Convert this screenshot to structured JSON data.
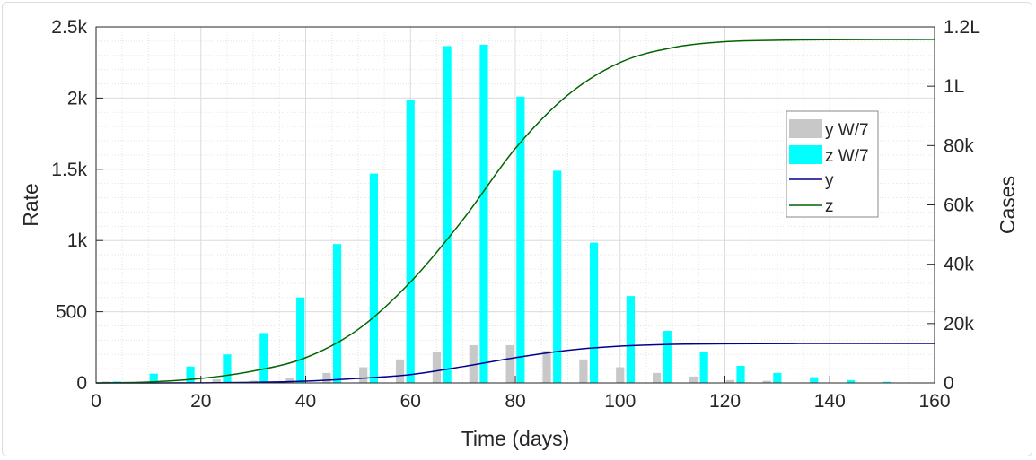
{
  "chart_data": {
    "type": "bar+line",
    "xlabel": "Time (days)",
    "ylabel_left": "Rate",
    "ylabel_right": "Cases",
    "xlim": [
      0,
      160
    ],
    "ylim_left": [
      0,
      2500
    ],
    "ylim_right": [
      0,
      120000
    ],
    "x_ticks": [
      "0",
      "20",
      "40",
      "60",
      "80",
      "100",
      "120",
      "140",
      "160"
    ],
    "y_left_ticks": [
      "0",
      "500",
      "1k",
      "1.5k",
      "2k",
      "2.5k"
    ],
    "y_right_ticks": [
      "0",
      "20k",
      "40k",
      "60k",
      "80k",
      "1L",
      "1.2L"
    ],
    "grid": true,
    "minor_grid": true,
    "legend_placement": "center-right",
    "week_days": [
      3,
      10,
      17,
      24,
      31,
      38,
      45,
      52,
      59,
      66,
      73,
      80,
      87,
      94,
      101,
      108,
      115,
      122,
      129,
      136,
      143,
      150,
      157
    ],
    "bar_series": [
      {
        "name": "y W/7",
        "color": "#c8c8c8",
        "axis": "left",
        "values": [
          10,
          0,
          5,
          25,
          15,
          35,
          70,
          110,
          165,
          220,
          265,
          265,
          225,
          165,
          110,
          70,
          45,
          20,
          15,
          0,
          0,
          0,
          0
        ]
      },
      {
        "name": "z W/7",
        "color": "#00ffff",
        "axis": "left",
        "values": [
          10,
          65,
          115,
          200,
          350,
          600,
          975,
          1470,
          1990,
          2365,
          2375,
          2010,
          1490,
          985,
          610,
          365,
          215,
          120,
          70,
          40,
          20,
          8,
          3
        ]
      }
    ],
    "line_series": [
      {
        "name": "y",
        "color": "#00008b",
        "axis": "right",
        "x": [
          0,
          10,
          20,
          30,
          40,
          50,
          60,
          70,
          80,
          90,
          100,
          110,
          120,
          140,
          160
        ],
        "y": [
          0,
          10,
          50,
          200,
          600,
          1500,
          2800,
          5500,
          8500,
          11000,
          12400,
          13000,
          13200,
          13300,
          13300
        ]
      },
      {
        "name": "z",
        "color": "#006400",
        "axis": "right",
        "x": [
          0,
          10,
          20,
          30,
          40,
          50,
          60,
          70,
          80,
          90,
          100,
          110,
          120,
          130,
          140,
          160
        ],
        "y": [
          0,
          300,
          1500,
          4000,
          8500,
          18000,
          34000,
          55000,
          79000,
          97000,
          108000,
          113000,
          115000,
          115500,
          115700,
          115800
        ]
      }
    ]
  }
}
